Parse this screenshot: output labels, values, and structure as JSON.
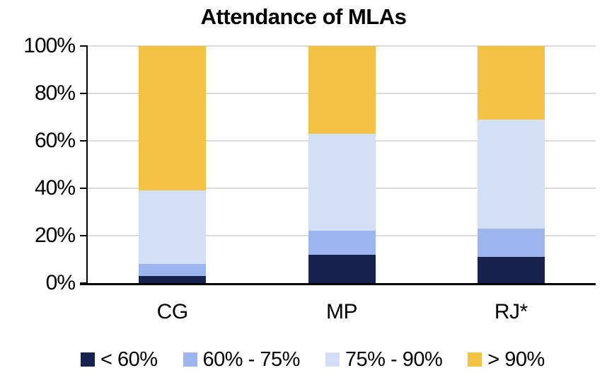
{
  "chart_data": {
    "type": "bar",
    "stacked": true,
    "title": "Attendance of MLAs",
    "categories": [
      "CG",
      "MP",
      "RJ*"
    ],
    "series": [
      {
        "name": "< 60%",
        "color": "#15234E",
        "values": [
          3,
          12,
          11
        ]
      },
      {
        "name": "60% - 75%",
        "color": "#9DB5EE",
        "values": [
          5,
          10,
          12
        ]
      },
      {
        "name": "75% - 90%",
        "color": "#D2DFF7",
        "values": [
          31,
          41,
          46
        ]
      },
      {
        "name": "> 90%",
        "color": "#F2C342",
        "values": [
          61,
          37,
          31
        ]
      }
    ],
    "xlabel": "",
    "ylabel": "",
    "ylim": [
      0,
      100
    ],
    "ytick_labels": [
      "0%",
      "20%",
      "40%",
      "60%",
      "80%",
      "100%"
    ],
    "grid": true,
    "gridline_color": "#DADADA",
    "axis_color": "#000000",
    "legend_position": "bottom"
  }
}
